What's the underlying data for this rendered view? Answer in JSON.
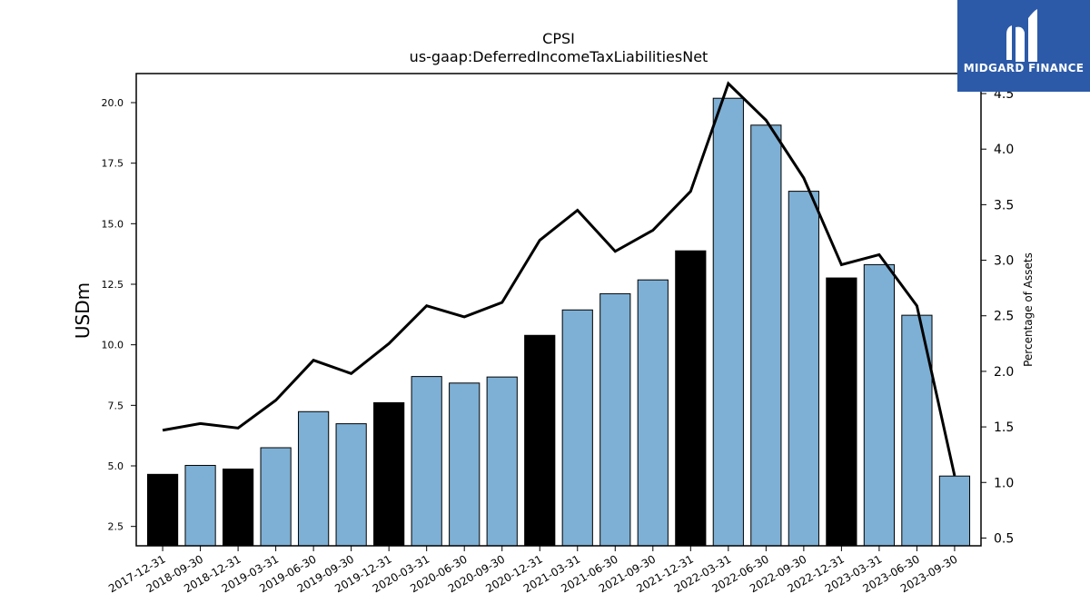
{
  "chart_data": {
    "type": "bar",
    "title": "CPSI",
    "subtitle": "us-gaap:DeferredIncomeTaxLiabilitiesNet",
    "ylabel": "USDm",
    "y2label": "Percentage of Assets",
    "ylim": [
      1.7,
      21.2
    ],
    "y2lim": [
      0.43,
      4.68
    ],
    "yticks": [
      "2.5",
      "5.0",
      "7.5",
      "10.0",
      "12.5",
      "15.0",
      "17.5",
      "20.0"
    ],
    "y2ticks": [
      "0.5",
      "1.0",
      "1.5",
      "2.0",
      "2.5",
      "3.0",
      "3.5",
      "4.0",
      "4.5"
    ],
    "categories": [
      "2017-12-31",
      "2018-09-30",
      "2018-12-31",
      "2019-03-31",
      "2019-06-30",
      "2019-09-30",
      "2019-12-31",
      "2020-03-31",
      "2020-06-30",
      "2020-09-30",
      "2020-12-31",
      "2021-03-31",
      "2021-06-30",
      "2021-09-30",
      "2021-12-31",
      "2022-03-31",
      "2022-06-30",
      "2022-09-30",
      "2022-12-31",
      "2023-03-31",
      "2023-06-30",
      "2023-09-30"
    ],
    "series": [
      {
        "type": "bar",
        "axis": "left",
        "values": [
          4.65,
          5.02,
          4.87,
          5.75,
          7.24,
          6.74,
          7.61,
          8.69,
          8.42,
          8.67,
          10.39,
          11.44,
          12.11,
          12.68,
          13.88,
          20.18,
          19.07,
          16.34,
          12.76,
          13.31,
          11.22,
          4.58
        ],
        "highlight": [
          true,
          false,
          true,
          false,
          false,
          false,
          true,
          false,
          false,
          false,
          true,
          false,
          false,
          false,
          true,
          false,
          false,
          false,
          true,
          false,
          false,
          false
        ]
      },
      {
        "type": "line",
        "axis": "right",
        "values": [
          1.47,
          1.53,
          1.49,
          1.74,
          2.1,
          1.98,
          2.25,
          2.59,
          2.49,
          2.62,
          3.18,
          3.45,
          3.08,
          3.27,
          3.62,
          4.59,
          4.26,
          3.74,
          2.96,
          3.05,
          2.59,
          1.06
        ]
      }
    ],
    "colors": {
      "bar": "#7eb0d5",
      "bar_highlight": "#000000",
      "line": "#000000"
    },
    "grid": false
  },
  "logo": {
    "text": "MIDGARD FINANCE",
    "color": "#2c5aa8"
  }
}
